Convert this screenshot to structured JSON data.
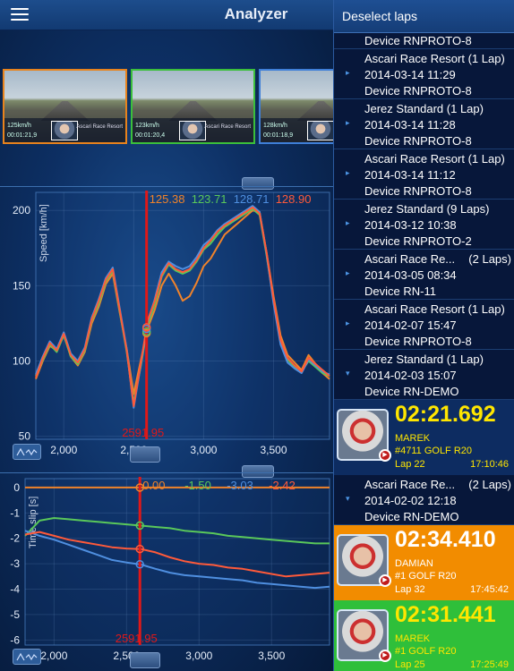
{
  "header": {
    "title": "Analyzer",
    "menu_icon": "hamburger-menu-icon"
  },
  "videos": [
    {
      "speed": "125",
      "speed_unit": "km/h",
      "time": "00:01:21,9",
      "track": "Ascari Race Resort",
      "border_color": "#e8831d"
    },
    {
      "speed": "123",
      "speed_unit": "km/h",
      "time": "00:01:20,4",
      "track": "Ascari Race Resort",
      "border_color": "#3bbf3b"
    },
    {
      "speed": "128",
      "speed_unit": "km/h",
      "time": "00:01:18,9",
      "track": "",
      "border_color": "#3f7fd8"
    }
  ],
  "speed_chart": {
    "ylabel": "Speed [km/h]",
    "cursor_label": "2591.95",
    "cursor_values": [
      {
        "value": "125.38",
        "color": "#f0832a"
      },
      {
        "value": "123.71",
        "color": "#5ac85a"
      },
      {
        "value": "128.71",
        "color": "#4f8fe0"
      },
      {
        "value": "128.90",
        "color": "#ff5a3a"
      }
    ]
  },
  "slip_chart": {
    "ylabel": "Time slip [s]",
    "cursor_label": "2591.95",
    "cursor_values": [
      {
        "value": "0.00",
        "color": "#f0832a"
      },
      {
        "value": "-1.50",
        "color": "#5ac85a"
      },
      {
        "value": "-3.03",
        "color": "#4f8fe0"
      },
      {
        "value": "-2.42",
        "color": "#ff5a3a"
      }
    ]
  },
  "chart_data": [
    {
      "type": "line",
      "title": "",
      "xlabel": "",
      "ylabel": "Speed [km/h]",
      "xlim": [
        1800,
        3900
      ],
      "ylim": [
        48,
        212
      ],
      "x_ticks": [
        2000,
        2500,
        3000,
        3500
      ],
      "x_tick_labels": [
        "2,000",
        "2,500",
        "3,000",
        "3,500"
      ],
      "y_ticks": [
        50,
        100,
        150,
        200
      ],
      "cursor_x": 2591.95,
      "series": [
        {
          "color": "#f0832a",
          "x": [
            1800,
            1850,
            1900,
            1950,
            2000,
            2050,
            2100,
            2150,
            2200,
            2250,
            2300,
            2350,
            2400,
            2450,
            2500,
            2550,
            2600,
            2650,
            2700,
            2750,
            2800,
            2850,
            2900,
            2950,
            3000,
            3050,
            3100,
            3150,
            3200,
            3250,
            3300,
            3350,
            3400,
            3450,
            3500,
            3550,
            3600,
            3650,
            3700,
            3750,
            3800,
            3850,
            3900
          ],
          "values": [
            88,
            100,
            110,
            107,
            118,
            103,
            97,
            106,
            125,
            136,
            151,
            158,
            132,
            108,
            78,
            100,
            122,
            134,
            150,
            158,
            150,
            140,
            143,
            152,
            163,
            168,
            176,
            184,
            188,
            192,
            196,
            200,
            199,
            172,
            143,
            117,
            104,
            99,
            94,
            104,
            98,
            92,
            88
          ]
        },
        {
          "color": "#5ac85a",
          "x": [
            1800,
            1850,
            1900,
            1950,
            2000,
            2050,
            2100,
            2150,
            2200,
            2250,
            2300,
            2350,
            2400,
            2450,
            2500,
            2550,
            2600,
            2650,
            2700,
            2750,
            2800,
            2850,
            2900,
            2950,
            3000,
            3050,
            3100,
            3150,
            3200,
            3250,
            3300,
            3350,
            3400,
            3450,
            3500,
            3550,
            3600,
            3650,
            3700,
            3750,
            3800,
            3850,
            3900
          ],
          "values": [
            90,
            101,
            111,
            106,
            117,
            103,
            98,
            107,
            127,
            138,
            153,
            160,
            133,
            106,
            72,
            96,
            124,
            138,
            156,
            164,
            160,
            158,
            160,
            166,
            174,
            178,
            184,
            189,
            192,
            195,
            198,
            201,
            197,
            170,
            140,
            113,
            101,
            96,
            93,
            100,
            96,
            92,
            90
          ]
        },
        {
          "color": "#4f8fe0",
          "x": [
            1800,
            1850,
            1900,
            1950,
            2000,
            2050,
            2100,
            2150,
            2200,
            2250,
            2300,
            2350,
            2400,
            2450,
            2500,
            2550,
            2600,
            2650,
            2700,
            2750,
            2800,
            2850,
            2900,
            2950,
            3000,
            3050,
            3100,
            3150,
            3200,
            3250,
            3300,
            3350,
            3400,
            3450,
            3500,
            3550,
            3600,
            3650,
            3700,
            3750,
            3800,
            3850,
            3900
          ],
          "values": [
            91,
            103,
            113,
            108,
            119,
            105,
            100,
            109,
            129,
            141,
            155,
            162,
            135,
            108,
            69,
            97,
            126,
            141,
            159,
            166,
            163,
            161,
            163,
            169,
            177,
            181,
            187,
            191,
            194,
            197,
            200,
            203,
            199,
            171,
            138,
            111,
            99,
            95,
            92,
            101,
            97,
            93,
            91
          ]
        },
        {
          "color": "#ff5a3a",
          "x": [
            1800,
            1850,
            1900,
            1950,
            2000,
            2050,
            2100,
            2150,
            2200,
            2250,
            2300,
            2350,
            2400,
            2450,
            2500,
            2550,
            2600,
            2650,
            2700,
            2750,
            2800,
            2850,
            2900,
            2950,
            3000,
            3050,
            3100,
            3150,
            3200,
            3250,
            3300,
            3350,
            3400,
            3450,
            3500,
            3550,
            3600,
            3650,
            3700,
            3750,
            3800,
            3850,
            3900
          ],
          "values": [
            89,
            102,
            112,
            107,
            118,
            104,
            99,
            108,
            128,
            140,
            154,
            161,
            134,
            107,
            70,
            98,
            127,
            140,
            157,
            165,
            161,
            159,
            161,
            167,
            175,
            180,
            186,
            190,
            193,
            196,
            199,
            202,
            198,
            172,
            141,
            114,
            102,
            97,
            93,
            102,
            98,
            94,
            90
          ]
        }
      ]
    },
    {
      "type": "line",
      "title": "",
      "xlabel": "",
      "ylabel": "Time slip [s]",
      "xlim": [
        1800,
        3900
      ],
      "ylim": [
        -6.2,
        0.35
      ],
      "x_ticks": [
        2000,
        2500,
        3000,
        3500
      ],
      "x_tick_labels": [
        "2,000",
        "2,500",
        "3,000",
        "3,500"
      ],
      "y_ticks": [
        0,
        -1,
        -2,
        -3,
        -4,
        -5,
        -6
      ],
      "cursor_x": 2591.95,
      "series": [
        {
          "color": "#f0832a",
          "x": [
            1800,
            3900
          ],
          "values": [
            0,
            0
          ]
        },
        {
          "color": "#5ac85a",
          "x": [
            1800,
            1900,
            2000,
            2100,
            2200,
            2300,
            2400,
            2500,
            2600,
            2700,
            2800,
            2900,
            3000,
            3100,
            3200,
            3300,
            3400,
            3500,
            3600,
            3700,
            3800,
            3900
          ],
          "values": [
            -1.9,
            -1.3,
            -1.2,
            -1.25,
            -1.3,
            -1.35,
            -1.4,
            -1.45,
            -1.5,
            -1.55,
            -1.6,
            -1.7,
            -1.75,
            -1.8,
            -1.9,
            -1.95,
            -2.0,
            -2.05,
            -2.1,
            -2.15,
            -2.2,
            -2.2
          ]
        },
        {
          "color": "#4f8fe0",
          "x": [
            1800,
            1900,
            2000,
            2100,
            2200,
            2300,
            2400,
            2500,
            2600,
            2700,
            2800,
            2900,
            3000,
            3100,
            3200,
            3300,
            3400,
            3500,
            3600,
            3700,
            3800,
            3900
          ],
          "values": [
            -1.7,
            -1.9,
            -2.05,
            -2.25,
            -2.45,
            -2.65,
            -2.85,
            -2.95,
            -3.03,
            -3.2,
            -3.35,
            -3.45,
            -3.5,
            -3.55,
            -3.6,
            -3.65,
            -3.75,
            -3.8,
            -3.85,
            -3.9,
            -3.95,
            -3.9
          ]
        },
        {
          "color": "#ff5a3a",
          "x": [
            1800,
            1900,
            2000,
            2100,
            2200,
            2300,
            2400,
            2500,
            2600,
            2700,
            2800,
            2900,
            3000,
            3100,
            3200,
            3300,
            3400,
            3500,
            3600,
            3700,
            3800,
            3900
          ],
          "values": [
            -1.85,
            -1.75,
            -1.9,
            -2.05,
            -2.15,
            -2.25,
            -2.35,
            -2.4,
            -2.42,
            -2.55,
            -2.75,
            -2.9,
            -3.0,
            -3.05,
            -3.15,
            -3.2,
            -3.3,
            -3.4,
            -3.5,
            -3.45,
            -3.4,
            -3.35
          ]
        }
      ]
    }
  ],
  "sidebar": {
    "deselect_label": "Deselect laps",
    "first_device": "Device RNPROTO-8",
    "groups": [
      {
        "title": "Ascari Race Resort (1 Lap)",
        "count": "",
        "date": "2014-03-14 11:29",
        "device": "Device RNPROTO-8",
        "chevron": "chevron-right-icon",
        "glyph": "▸"
      },
      {
        "title": "Jerez Standard (1 Lap)",
        "count": "",
        "date": "2014-03-14 11:28",
        "device": "Device RNPROTO-8",
        "chevron": "chevron-right-icon",
        "glyph": "▸"
      },
      {
        "title": "Ascari Race Resort (1 Lap)",
        "count": "",
        "date": "2014-03-14 11:12",
        "device": "Device RNPROTO-8",
        "chevron": "chevron-right-icon",
        "glyph": "▸"
      },
      {
        "title": "Jerez Standard (9 Laps)",
        "count": "",
        "date": "2014-03-12 10:38",
        "device": "Device RNPROTO-2",
        "chevron": "chevron-right-icon",
        "glyph": "▸"
      },
      {
        "title": "Ascari Race Re...",
        "count": "(2 Laps)",
        "date": "2014-03-05 08:34",
        "device": "Device RN-11",
        "chevron": "chevron-right-icon",
        "glyph": "▸"
      },
      {
        "title": "Ascari Race Resort (1 Lap)",
        "count": "",
        "date": "2014-02-07 15:47",
        "device": "Device RNPROTO-8",
        "chevron": "chevron-right-icon",
        "glyph": "▸"
      },
      {
        "title": "Jerez Standard (1 Lap)",
        "count": "",
        "date": "2014-02-03 15:07",
        "device": "Device RN-DEMO",
        "chevron": "chevron-down-icon",
        "glyph": "▾"
      }
    ],
    "lap1": {
      "time": "02:21.692",
      "driver": "MAREK",
      "car": "#4711 GOLF R20",
      "lap": "Lap 22",
      "clock": "17:10:46"
    },
    "group_open": {
      "title": "Ascari Race Re...",
      "count": "(2 Laps)",
      "date": "2014-02-02 12:18",
      "device": "Device RN-DEMO",
      "chevron": "chevron-down-icon",
      "glyph": "▾"
    },
    "lap2": {
      "time": "02:34.410",
      "driver": "DAMIAN",
      "car": "#1 GOLF R20",
      "lap": "Lap 32",
      "clock": "17:45:42"
    },
    "lap3": {
      "time": "02:31.441",
      "driver": "MAREK",
      "car": "#1 GOLF R20",
      "lap": "Lap 25",
      "clock": "17:25:49"
    }
  }
}
